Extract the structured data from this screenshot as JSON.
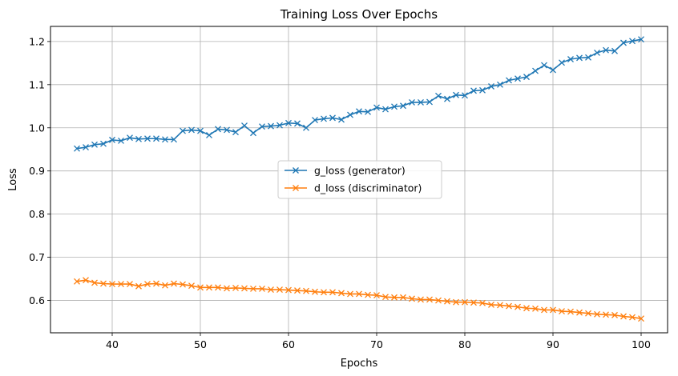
{
  "chart_data": {
    "type": "line",
    "title": "Training Loss Over Epochs",
    "xlabel": "Epochs",
    "ylabel": "Loss",
    "xlim": [
      33,
      103
    ],
    "ylim": [
      0.525,
      1.235
    ],
    "xticks": [
      40,
      50,
      60,
      70,
      80,
      90,
      100
    ],
    "yticks": [
      0.6,
      0.7,
      0.8,
      0.9,
      1.0,
      1.1,
      1.2
    ],
    "grid": true,
    "legend_position": "center",
    "x": [
      36,
      37,
      38,
      39,
      40,
      41,
      42,
      43,
      44,
      45,
      46,
      47,
      48,
      49,
      50,
      51,
      52,
      53,
      54,
      55,
      56,
      57,
      58,
      59,
      60,
      61,
      62,
      63,
      64,
      65,
      66,
      67,
      68,
      69,
      70,
      71,
      72,
      73,
      74,
      75,
      76,
      77,
      78,
      79,
      80,
      81,
      82,
      83,
      84,
      85,
      86,
      87,
      88,
      89,
      90,
      91,
      92,
      93,
      94,
      95,
      96,
      97,
      98,
      99,
      100
    ],
    "series": [
      {
        "name": "g_loss (generator)",
        "color": "#1f77b4",
        "values": [
          0.952,
          0.955,
          0.961,
          0.963,
          0.972,
          0.97,
          0.977,
          0.974,
          0.975,
          0.975,
          0.973,
          0.973,
          0.993,
          0.995,
          0.993,
          0.983,
          0.997,
          0.995,
          0.99,
          1.005,
          0.988,
          1.003,
          1.004,
          1.006,
          1.011,
          1.01,
          1.0,
          1.018,
          1.021,
          1.023,
          1.019,
          1.03,
          1.038,
          1.037,
          1.047,
          1.043,
          1.049,
          1.051,
          1.059,
          1.059,
          1.06,
          1.074,
          1.067,
          1.076,
          1.075,
          1.086,
          1.087,
          1.096,
          1.1,
          1.11,
          1.114,
          1.118,
          1.132,
          1.145,
          1.134,
          1.151,
          1.159,
          1.162,
          1.163,
          1.174,
          1.18,
          1.178,
          1.197,
          1.201,
          1.205
        ]
      },
      {
        "name": "d_loss (discriminator)",
        "color": "#ff7f0e",
        "values": [
          0.644,
          0.647,
          0.641,
          0.639,
          0.638,
          0.638,
          0.638,
          0.633,
          0.638,
          0.639,
          0.635,
          0.639,
          0.637,
          0.634,
          0.63,
          0.63,
          0.63,
          0.628,
          0.629,
          0.628,
          0.627,
          0.627,
          0.625,
          0.625,
          0.624,
          0.623,
          0.622,
          0.62,
          0.619,
          0.619,
          0.617,
          0.615,
          0.615,
          0.613,
          0.612,
          0.608,
          0.607,
          0.607,
          0.604,
          0.602,
          0.602,
          0.6,
          0.598,
          0.596,
          0.596,
          0.595,
          0.594,
          0.59,
          0.589,
          0.587,
          0.585,
          0.582,
          0.581,
          0.578,
          0.578,
          0.575,
          0.574,
          0.572,
          0.57,
          0.568,
          0.567,
          0.566,
          0.563,
          0.561,
          0.558
        ]
      }
    ]
  }
}
